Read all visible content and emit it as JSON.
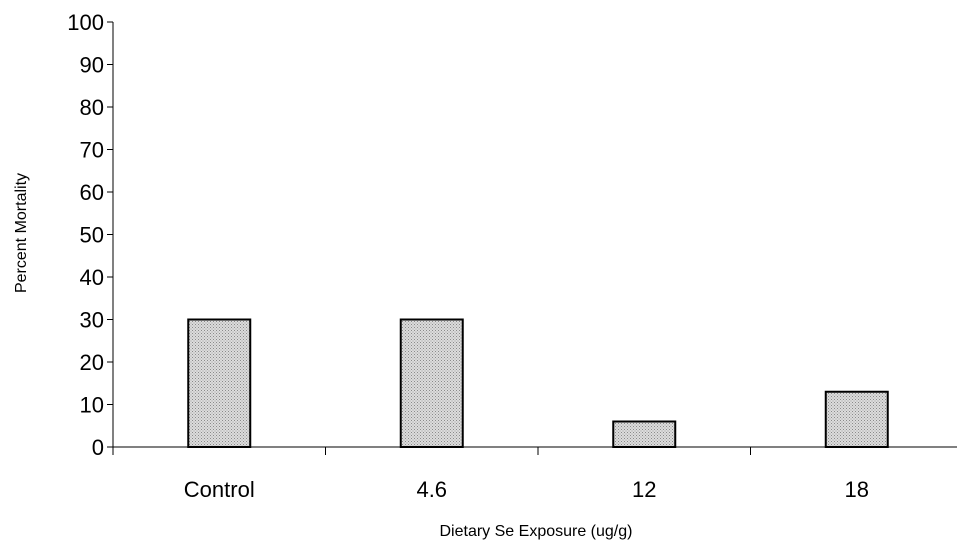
{
  "chart_data": {
    "type": "bar",
    "title": "",
    "xlabel": "Dietary Se Exposure (ug/g)",
    "ylabel": "Percent Mortality",
    "categories": [
      "Control",
      "4.6",
      "12",
      "18"
    ],
    "values": [
      30,
      30,
      6,
      13
    ],
    "ylim": [
      0,
      100
    ],
    "yticks": [
      0,
      10,
      20,
      30,
      40,
      50,
      60,
      70,
      80,
      90,
      100
    ],
    "grid": false,
    "legend": "none",
    "colors": {
      "bar_fill": "#c8c8c8",
      "bar_stroke": "#000000",
      "axis": "#000000"
    }
  }
}
